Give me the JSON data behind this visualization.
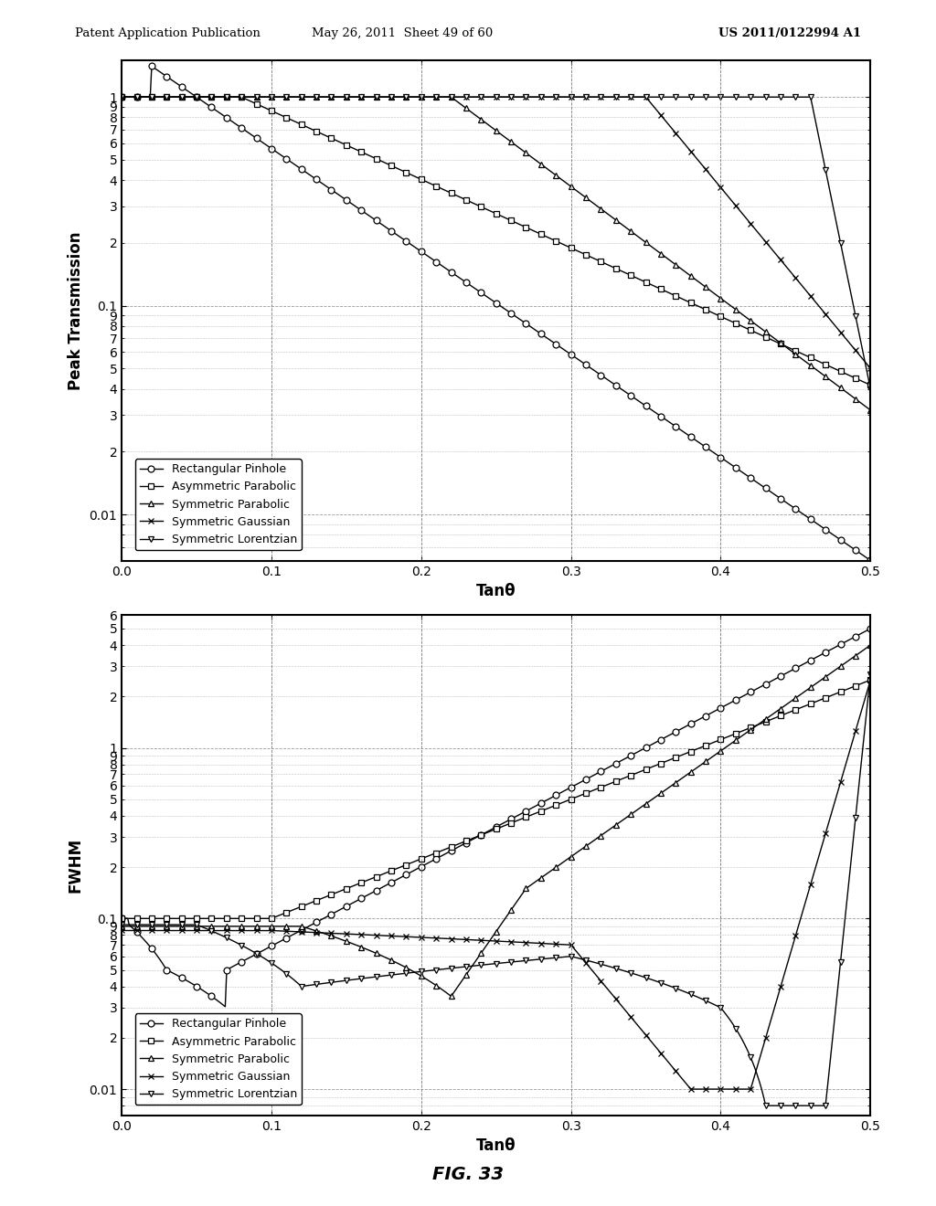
{
  "header_left": "Patent Application Publication",
  "header_mid": "May 26, 2011  Sheet 49 of 60",
  "header_right": "US 2011/0122994 A1",
  "fig_label": "FIG. 33",
  "xlabel": "Tanθ",
  "plot1_ylabel": "Peak Transmission",
  "plot2_ylabel": "FWHM",
  "legends": [
    "Rectangular Pinhole",
    "Asymmetric Parabolic",
    "Symmetric Parabolic",
    "Symmetric Gaussian",
    "Symmetric Lorentzian"
  ],
  "markers": [
    "o",
    "s",
    "^",
    "x",
    "v"
  ]
}
